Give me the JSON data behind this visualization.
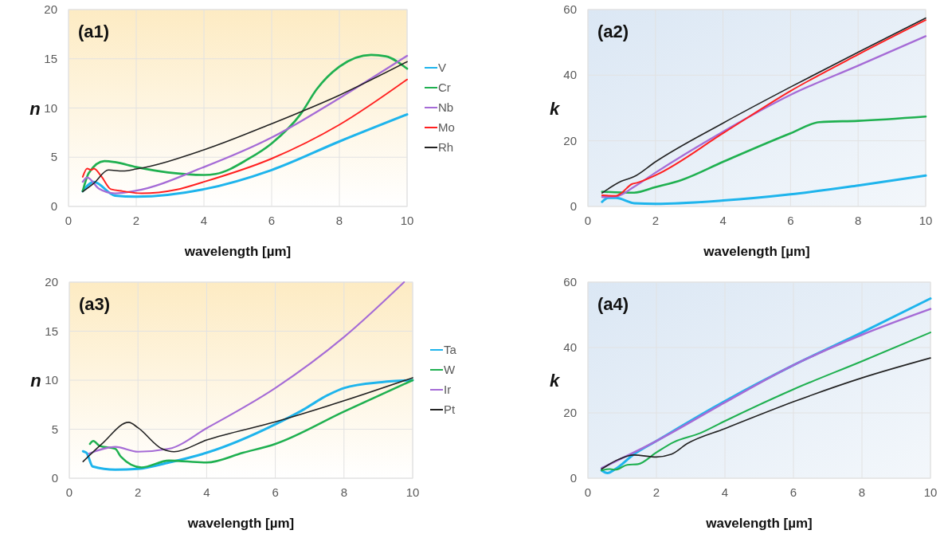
{
  "chart_data": [
    {
      "type": "line",
      "title": "(a1)",
      "xlabel": "wavelength [µm]",
      "ylabel": "n",
      "xlim": [
        0,
        10
      ],
      "ylim": [
        0,
        20
      ],
      "xticks": [
        0,
        2,
        4,
        6,
        8,
        10
      ],
      "yticks": [
        0,
        5,
        10,
        15,
        20
      ],
      "grid": true,
      "legend": "right",
      "series": [
        {
          "name": "V",
          "color": "#1eb4ec",
          "x": [
            0.42,
            0.75,
            1.37,
            2,
            4,
            6,
            8,
            10
          ],
          "values": [
            1.55,
            2.5,
            1.1,
            1.0,
            1.75,
            3.7,
            6.6,
            9.35
          ]
        },
        {
          "name": "Cr",
          "color": "#1fb050",
          "x": [
            0.42,
            0.6,
            1.06,
            1.37,
            2,
            2.94,
            4,
            4.35,
            5.3,
            6,
            6.86,
            7.33,
            8,
            8.94,
            9.37,
            10
          ],
          "values": [
            1.55,
            3.4,
            4.6,
            4.5,
            4.0,
            3.45,
            3.2,
            3.3,
            4.8,
            6.4,
            9.4,
            11.9,
            14.2,
            15.4,
            15.25,
            14.0
          ]
        },
        {
          "name": "Nb",
          "color": "#a56bd6",
          "x": [
            0.42,
            0.55,
            0.9,
            1.37,
            2,
            4,
            6,
            8,
            10
          ],
          "values": [
            2.5,
            2.95,
            1.8,
            1.33,
            1.6,
            4.0,
            7.0,
            11.0,
            15.3
          ]
        },
        {
          "name": "Mo",
          "color": "#ff2020",
          "x": [
            0.42,
            0.55,
            0.67,
            0.75,
            0.98,
            1.25,
            1.6,
            2.16,
            3.18,
            4,
            6,
            8,
            10
          ],
          "values": [
            3.0,
            3.85,
            3.7,
            3.85,
            3.0,
            1.75,
            1.55,
            1.33,
            1.7,
            2.5,
            4.86,
            8.3,
            12.9
          ]
        },
        {
          "name": "Rh",
          "color": "#222222",
          "x": [
            0.42,
            0.75,
            1.18,
            1.6,
            2,
            4,
            6,
            8,
            10
          ],
          "values": [
            1.5,
            2.36,
            3.7,
            3.6,
            3.8,
            5.75,
            8.4,
            11.3,
            14.7
          ]
        }
      ]
    },
    {
      "type": "line",
      "title": "(a2)",
      "xlabel": "wavelength [µm]",
      "ylabel": "k",
      "xlim": [
        0,
        10
      ],
      "ylim": [
        0,
        60
      ],
      "xticks": [
        0,
        2,
        4,
        6,
        8,
        10
      ],
      "yticks": [
        0,
        20,
        40,
        60
      ],
      "grid": true,
      "series": [
        {
          "color": "#1eb4ec",
          "x": [
            0.42,
            0.6,
            0.83,
            1.37,
            2,
            4,
            6,
            8,
            10
          ],
          "values": [
            1.4,
            2.6,
            2.6,
            1.0,
            0.8,
            1.8,
            3.7,
            6.4,
            9.4
          ]
        },
        {
          "color": "#1fb050",
          "x": [
            0.42,
            1.37,
            2,
            2.78,
            4,
            6,
            6.86,
            8,
            10
          ],
          "values": [
            4.5,
            4.2,
            5.9,
            8.1,
            13.6,
            22.3,
            25.7,
            26.1,
            27.4
          ]
        },
        {
          "color": "#a56bd6",
          "x": [
            0.42,
            0.83,
            1.37,
            2,
            4,
            6,
            8,
            10
          ],
          "values": [
            2.85,
            3.0,
            6.0,
            10.3,
            22.8,
            34,
            42.9,
            51.9
          ]
        },
        {
          "color": "#ff2020",
          "x": [
            0.42,
            0.83,
            0.98,
            1.3,
            1.45,
            2,
            4,
            6,
            8,
            10
          ],
          "values": [
            3.4,
            3.2,
            4.0,
            6.8,
            7.2,
            9.5,
            22.3,
            35.2,
            46.3,
            56.8
          ]
        },
        {
          "color": "#222222",
          "x": [
            0.42,
            0.98,
            1.37,
            2,
            4,
            6,
            8,
            10
          ],
          "values": [
            4.1,
            7.65,
            9.1,
            13.6,
            25.4,
            36.4,
            47,
            57.4
          ]
        }
      ]
    },
    {
      "type": "line",
      "title": "(a3)",
      "xlabel": "wavelength [µm]",
      "ylabel": "n",
      "xlim": [
        0,
        10
      ],
      "ylim": [
        0,
        20
      ],
      "xticks": [
        0,
        2,
        4,
        6,
        8,
        10
      ],
      "yticks": [
        0,
        5,
        10,
        15,
        20
      ],
      "grid": true,
      "legend": "right",
      "series": [
        {
          "name": "Ta",
          "color": "#1eb4ec",
          "x": [
            0.4,
            0.5,
            0.68,
            1.34,
            2,
            2.9,
            4,
            6,
            6.77,
            7.54,
            8,
            9.1,
            10
          ],
          "values": [
            2.75,
            2.6,
            1.2,
            0.87,
            0.95,
            1.6,
            2.6,
            5.5,
            6.9,
            8.5,
            9.2,
            9.8,
            10.0
          ]
        },
        {
          "name": "W",
          "color": "#1fb050",
          "x": [
            0.6,
            0.7,
            0.88,
            1.34,
            1.5,
            2.1,
            2.9,
            4,
            5.06,
            6,
            8,
            10
          ],
          "values": [
            3.5,
            3.8,
            3.3,
            3.0,
            2.2,
            1.1,
            1.8,
            1.6,
            2.6,
            3.5,
            6.8,
            10.0
          ]
        },
        {
          "name": "Ir",
          "color": "#a56bd6",
          "x": [
            0.57,
            1.34,
            2,
            2.9,
            4,
            6,
            8,
            9.75
          ],
          "values": [
            2.5,
            3.2,
            2.7,
            3.0,
            5.1,
            9.2,
            14.4,
            20
          ]
        },
        {
          "name": "Pt",
          "color": "#222222",
          "x": [
            0.4,
            0.95,
            1.73,
            2,
            2.7,
            3.05,
            4,
            6,
            8,
            10
          ],
          "values": [
            1.7,
            3.5,
            5.7,
            5.15,
            3.0,
            2.7,
            3.9,
            5.75,
            7.9,
            10.25
          ]
        }
      ]
    },
    {
      "type": "line",
      "title": "(a4)",
      "xlabel": "wavelength [µm]",
      "ylabel": "k",
      "xlim": [
        0,
        10
      ],
      "ylim": [
        0,
        60
      ],
      "xticks": [
        0,
        2,
        4,
        6,
        8,
        10
      ],
      "yticks": [
        0,
        20,
        40,
        60
      ],
      "grid": true,
      "series": [
        {
          "color": "#1eb4ec",
          "x": [
            0.4,
            0.57,
            0.8,
            1.34,
            2,
            4,
            6,
            8,
            10
          ],
          "values": [
            2.4,
            1.6,
            2.8,
            7.3,
            11.4,
            23.6,
            34.6,
            44.6,
            55
          ]
        },
        {
          "color": "#a56bd6",
          "x": [
            0.4,
            1.34,
            2,
            4,
            6,
            8,
            10
          ],
          "values": [
            3.1,
            7.9,
            11.4,
            23.2,
            34.6,
            43.9,
            51.8
          ]
        },
        {
          "color": "#1fb050",
          "x": [
            0.4,
            0.64,
            0.8,
            1.15,
            1.46,
            2,
            2.5,
            3.28,
            4,
            6,
            8,
            10
          ],
          "values": [
            2.4,
            2.8,
            2.6,
            4.1,
            4.3,
            7.9,
            11.0,
            13.8,
            17.5,
            27.2,
            35.8,
            44.6
          ]
        },
        {
          "color": "#222222",
          "x": [
            0.4,
            0.88,
            1.34,
            2,
            2.43,
            2.9,
            4,
            6,
            8,
            10
          ],
          "values": [
            2.8,
            5.7,
            7.1,
            6.5,
            7.3,
            10.6,
            15.2,
            23.4,
            30.7,
            36.8
          ]
        }
      ]
    }
  ]
}
